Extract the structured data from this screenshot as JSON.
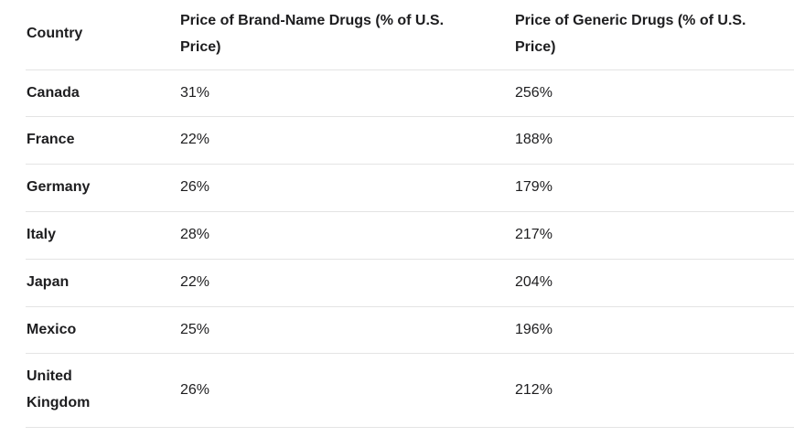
{
  "colors": {
    "text": "#1d1d1f",
    "divider": "#e4e4e4",
    "background": "#ffffff"
  },
  "chart_data": {
    "type": "table",
    "columns": [
      "Country",
      "Price of Brand-Name Drugs (% of U.S. Price)",
      "Price of Generic Drugs (% of U.S. Price)"
    ],
    "rows": [
      [
        "Canada",
        "31%",
        "256%"
      ],
      [
        "France",
        "22%",
        "188%"
      ],
      [
        "Germany",
        "26%",
        "179%"
      ],
      [
        "Italy",
        "28%",
        "217%"
      ],
      [
        "Japan",
        "22%",
        "204%"
      ],
      [
        "Mexico",
        "25%",
        "196%"
      ],
      [
        "United Kingdom",
        "26%",
        "212%"
      ]
    ]
  }
}
